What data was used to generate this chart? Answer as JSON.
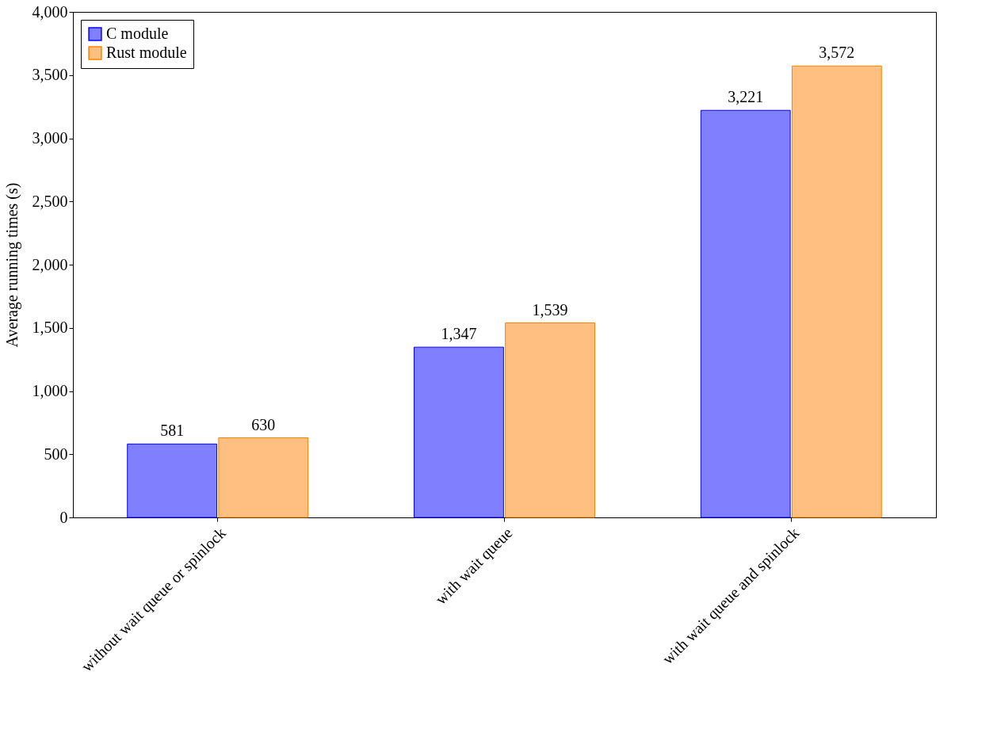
{
  "chart_data": {
    "type": "bar",
    "ylabel": "Average running times (s)",
    "categories": [
      "without wait queue or spinlock",
      "with wait queue",
      "with wait queue and spinlock"
    ],
    "series": [
      {
        "name": "C module",
        "color": "#8080ff",
        "values": [
          581,
          1347,
          3221
        ],
        "value_labels": [
          "581",
          "1,347",
          "3,221"
        ]
      },
      {
        "name": "Rust module",
        "color": "#ffbf80",
        "values": [
          630,
          1539,
          3572
        ],
        "value_labels": [
          "630",
          "1,539",
          "3,572"
        ]
      }
    ],
    "ylim": [
      0,
      4000
    ],
    "yticks": [
      0,
      500,
      {
        "value": 1000,
        "label": "1,000"
      },
      {
        "value": 1500,
        "label": "1,500"
      },
      {
        "value": 2000,
        "label": "2,000"
      },
      {
        "value": 2500,
        "label": "2,500"
      },
      {
        "value": 3000,
        "label": "3,000"
      },
      {
        "value": 3500,
        "label": "3,500"
      },
      {
        "value": 4000,
        "label": "4,000"
      }
    ],
    "grid": false,
    "legend": "top left"
  }
}
